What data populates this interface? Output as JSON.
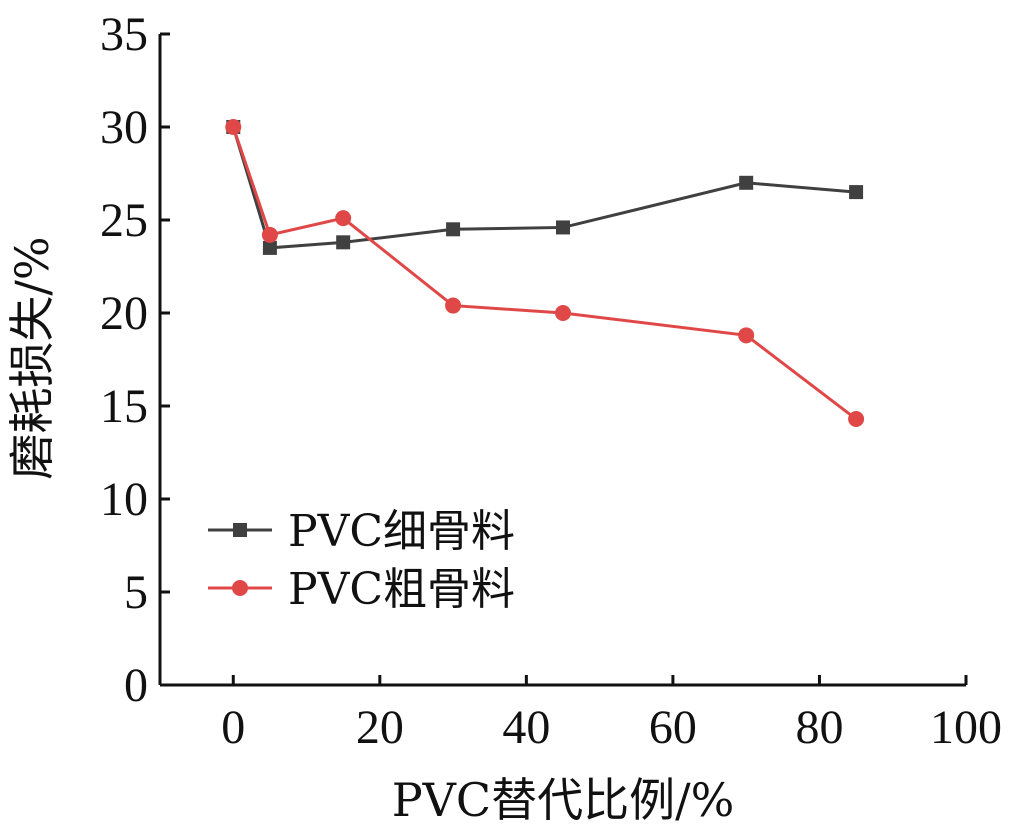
{
  "chart_data": {
    "type": "line",
    "title": "",
    "xlabel": "PVC替代比例/%",
    "ylabel": "磨耗损失/%",
    "xlim": [
      -10,
      100
    ],
    "ylim": [
      0,
      35
    ],
    "xticks": [
      0,
      20,
      40,
      60,
      80,
      100
    ],
    "yticks": [
      0,
      5,
      10,
      15,
      20,
      25,
      30,
      35
    ],
    "grid": false,
    "legend_position": "lower-left",
    "series": [
      {
        "name": "PVC细骨料",
        "color": "#404040",
        "marker": "square",
        "x": [
          0,
          5,
          15,
          30,
          45,
          70,
          85
        ],
        "y": [
          30.0,
          23.5,
          23.8,
          24.5,
          24.6,
          27.0,
          26.5
        ]
      },
      {
        "name": "PVC粗骨料",
        "color": "#e04848",
        "marker": "circle",
        "x": [
          0,
          5,
          15,
          30,
          45,
          70,
          85
        ],
        "y": [
          30.0,
          24.2,
          25.1,
          20.4,
          20.0,
          18.8,
          14.3
        ]
      }
    ]
  }
}
